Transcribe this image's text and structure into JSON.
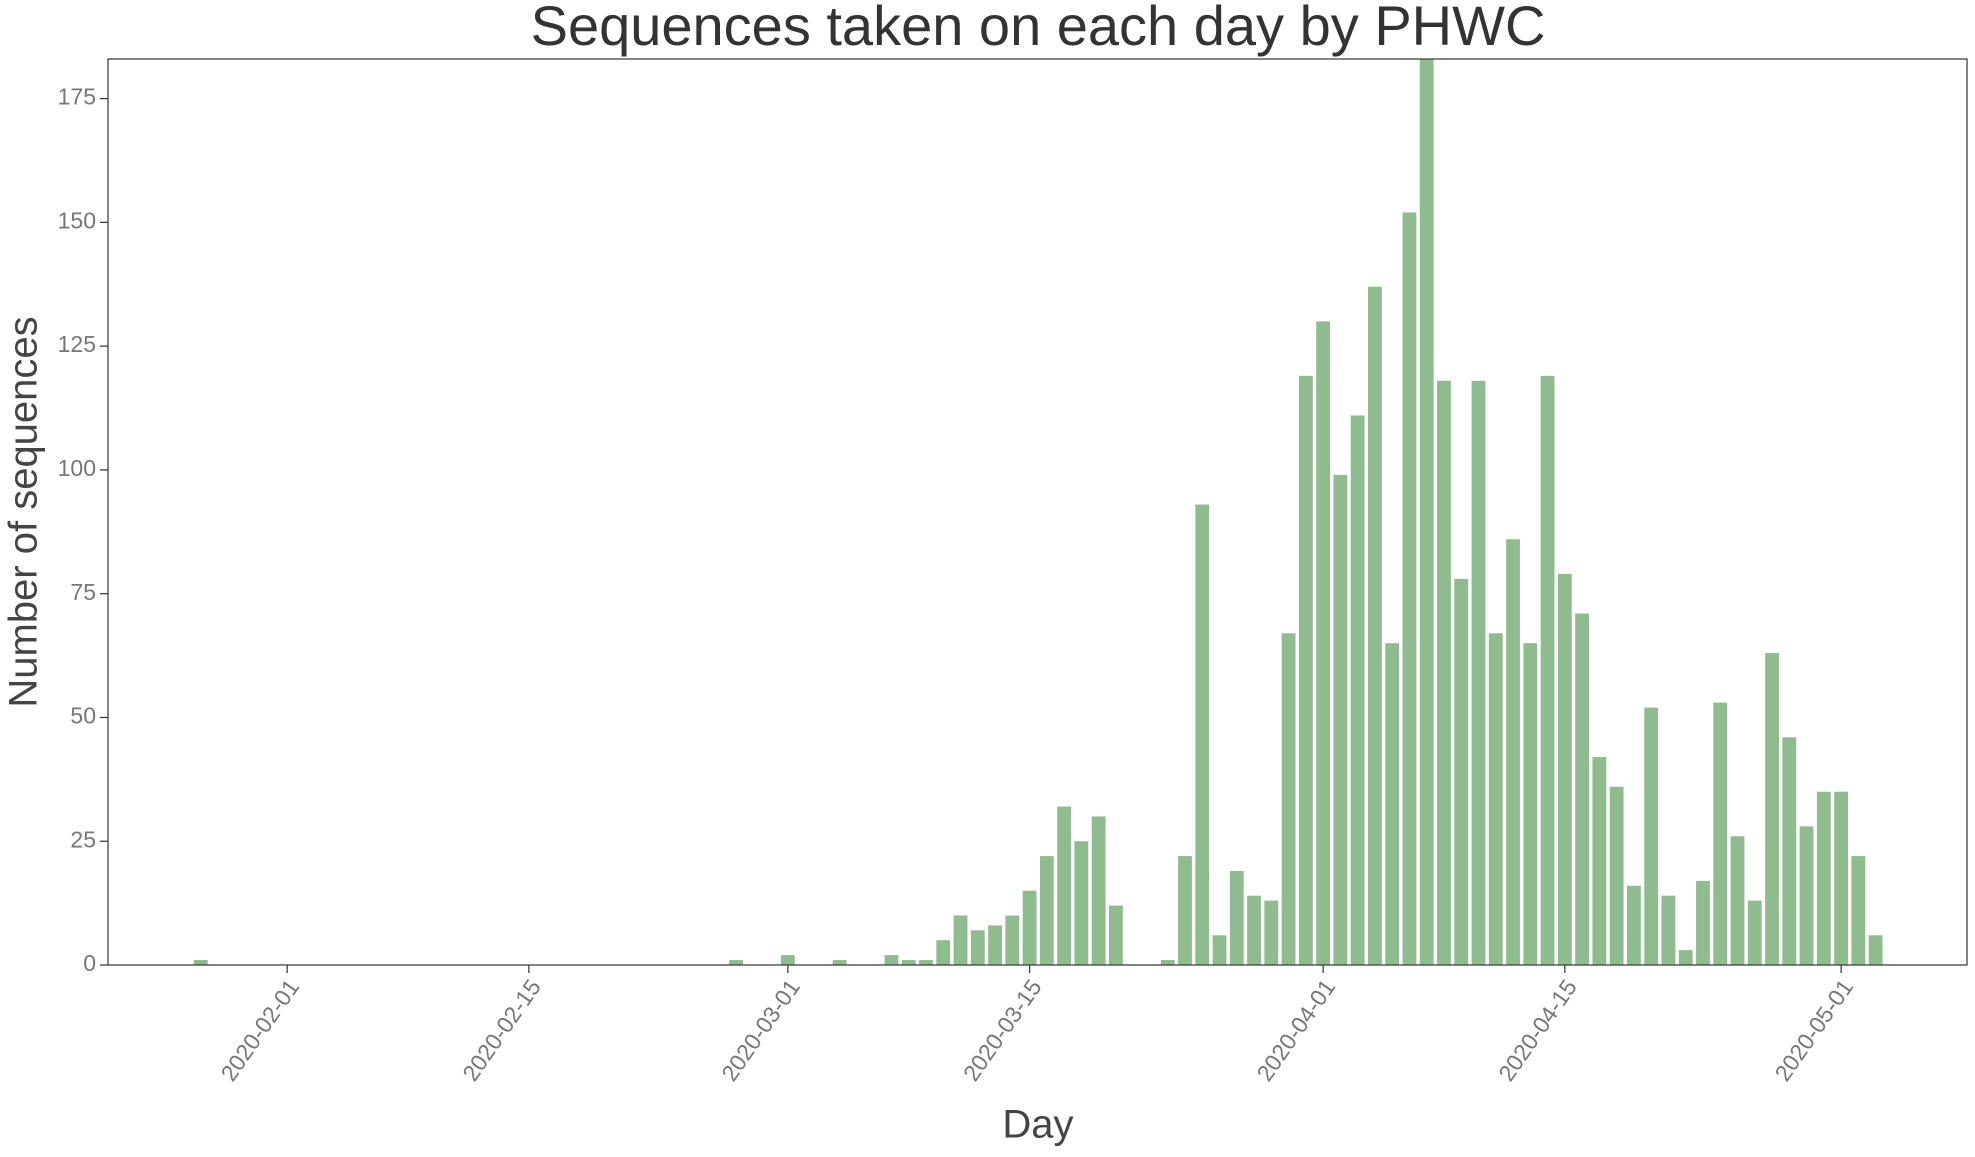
{
  "chart_data": {
    "type": "bar",
    "title": "Sequences taken on each day by PHWC",
    "xlabel": "Day",
    "ylabel": "Number of sequences",
    "color": "#8fbc8f",
    "x": [
      "2020-01-27",
      "2020-02-27",
      "2020-03-01",
      "2020-03-04",
      "2020-03-07",
      "2020-03-08",
      "2020-03-09",
      "2020-03-10",
      "2020-03-11",
      "2020-03-12",
      "2020-03-13",
      "2020-03-14",
      "2020-03-15",
      "2020-03-16",
      "2020-03-17",
      "2020-03-18",
      "2020-03-19",
      "2020-03-20",
      "2020-03-23",
      "2020-03-24",
      "2020-03-25",
      "2020-03-26",
      "2020-03-27",
      "2020-03-28",
      "2020-03-29",
      "2020-03-30",
      "2020-03-31",
      "2020-04-01",
      "2020-04-02",
      "2020-04-03",
      "2020-04-04",
      "2020-04-05",
      "2020-04-06",
      "2020-04-07",
      "2020-04-08",
      "2020-04-09",
      "2020-04-10",
      "2020-04-11",
      "2020-04-12",
      "2020-04-13",
      "2020-04-14",
      "2020-04-15",
      "2020-04-16",
      "2020-04-17",
      "2020-04-18",
      "2020-04-19",
      "2020-04-20",
      "2020-04-21",
      "2020-04-22",
      "2020-04-23",
      "2020-04-24",
      "2020-04-25",
      "2020-04-26",
      "2020-04-27",
      "2020-04-28",
      "2020-04-29",
      "2020-04-30",
      "2020-05-01",
      "2020-05-02",
      "2020-05-03"
    ],
    "values": [
      1,
      1,
      2,
      1,
      2,
      1,
      1,
      5,
      10,
      7,
      8,
      10,
      15,
      22,
      32,
      25,
      30,
      12,
      1,
      22,
      93,
      6,
      19,
      14,
      13,
      67,
      119,
      130,
      99,
      111,
      137,
      65,
      152,
      183,
      118,
      78,
      118,
      67,
      86,
      65,
      119,
      79,
      71,
      42,
      36,
      16,
      52,
      14,
      3,
      17,
      53,
      26,
      13,
      63,
      46,
      28,
      35,
      35,
      22,
      6
    ],
    "xlim": [
      "2020-01-21T15:00",
      "2020-05-08T07:00"
    ],
    "xticks": [
      "2020-02-01",
      "2020-02-15",
      "2020-03-01",
      "2020-03-15",
      "2020-04-01",
      "2020-04-15",
      "2020-05-01"
    ],
    "ylim": [
      0,
      183
    ],
    "yticks": [
      0,
      25,
      50,
      75,
      100,
      125,
      150,
      175
    ]
  }
}
